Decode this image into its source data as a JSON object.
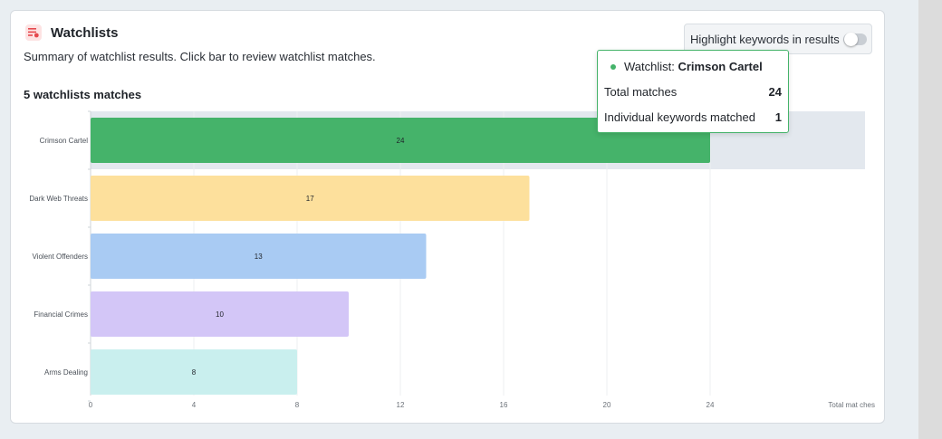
{
  "header": {
    "title": "Watchlists",
    "subtitle": "Summary of watchlist results. Click bar to review watchlist matches.",
    "count_label": "5 watchlists matches",
    "icon": "watchlist-icon"
  },
  "toggle": {
    "label": "Highlight keywords in results",
    "on": false
  },
  "tooltip": {
    "prefix": "Watchlist: ",
    "name": "Crimson Cartel",
    "rows": [
      {
        "label": "Total matches",
        "value": "24"
      },
      {
        "label": "Individual keywords matched",
        "value": "1"
      }
    ]
  },
  "chart_data": {
    "type": "bar",
    "orientation": "horizontal",
    "categories": [
      "Crimson Cartel",
      "Dark Web Threats",
      "Violent Offenders",
      "Financial Crimes",
      "Arms Dealing"
    ],
    "values": [
      24,
      17,
      13,
      10,
      8
    ],
    "colors": [
      "#45b36a",
      "#fde09c",
      "#a9cbf3",
      "#d3c6f7",
      "#c9efee"
    ],
    "highlighted_category": "Crimson Cartel",
    "xlabel": "Total mat ches",
    "xlim": [
      0,
      30
    ],
    "xticks": [
      0,
      4,
      8,
      12,
      16,
      20,
      24
    ],
    "grid": true
  }
}
